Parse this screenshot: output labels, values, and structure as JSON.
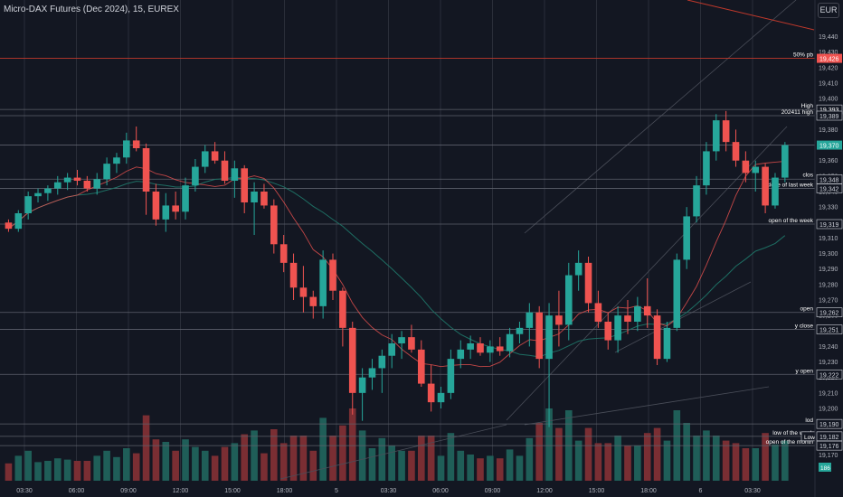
{
  "header": {
    "title": "Micro-DAX Futures (Dec 2024), 15, EUREX",
    "currency": "EUR"
  },
  "chart_data": {
    "type": "candlestick",
    "ylim": [
      19165,
      19452
    ],
    "y_ticks": [
      19440,
      19430,
      19420,
      19410,
      19400,
      19390,
      19380,
      19370,
      19360,
      19350,
      19340,
      19330,
      19320,
      19310,
      19300,
      19290,
      19280,
      19270,
      19260,
      19250,
      19240,
      19230,
      19220,
      19210,
      19200,
      19190,
      19180,
      19170
    ],
    "x_ticks": [
      "03:30",
      "06:00",
      "09:00",
      "12:00",
      "15:00",
      "18:00",
      "5",
      "03:30",
      "06:00",
      "09:00",
      "12:00",
      "15:00",
      "18:00",
      "6",
      "03:30"
    ],
    "colors": {
      "up": "#26a69a",
      "down": "#ef5350",
      "bg": "#131722",
      "grid": "#2a2e39",
      "level": "#5d606b",
      "ma1": "#ef5350",
      "ma2": "#1e6e63"
    },
    "candles": [
      [
        19320,
        19322,
        19314,
        19316
      ],
      [
        19316,
        19328,
        19314,
        19326
      ],
      [
        19326,
        19340,
        19322,
        19337
      ],
      [
        19337,
        19342,
        19333,
        19339
      ],
      [
        19339,
        19344,
        19334,
        19342
      ],
      [
        19342,
        19350,
        19338,
        19346
      ],
      [
        19346,
        19352,
        19341,
        19349
      ],
      [
        19349,
        19354,
        19344,
        19347
      ],
      [
        19347,
        19350,
        19340,
        19342
      ],
      [
        19342,
        19352,
        19338,
        19348
      ],
      [
        19348,
        19362,
        19344,
        19358
      ],
      [
        19358,
        19365,
        19352,
        19362
      ],
      [
        19362,
        19378,
        19358,
        19373
      ],
      [
        19373,
        19382,
        19366,
        19368
      ],
      [
        19368,
        19371,
        19325,
        19340
      ],
      [
        19340,
        19345,
        19318,
        19322
      ],
      [
        19322,
        19339,
        19314,
        19331
      ],
      [
        19331,
        19340,
        19322,
        19327
      ],
      [
        19327,
        19349,
        19322,
        19344
      ],
      [
        19344,
        19361,
        19340,
        19356
      ],
      [
        19356,
        19370,
        19352,
        19366
      ],
      [
        19366,
        19372,
        19358,
        19360
      ],
      [
        19360,
        19366,
        19345,
        19347
      ],
      [
        19347,
        19360,
        19336,
        19355
      ],
      [
        19355,
        19357,
        19326,
        19333
      ],
      [
        19333,
        19346,
        19312,
        19340
      ],
      [
        19340,
        19345,
        19329,
        19331
      ],
      [
        19331,
        19335,
        19300,
        19306
      ],
      [
        19306,
        19312,
        19288,
        19294
      ],
      [
        19294,
        19300,
        19270,
        19278
      ],
      [
        19278,
        19292,
        19262,
        19272
      ],
      [
        19272,
        19276,
        19258,
        19266
      ],
      [
        19266,
        19302,
        19258,
        19296
      ],
      [
        19296,
        19300,
        19270,
        19276
      ],
      [
        19276,
        19278,
        19240,
        19252
      ],
      [
        19252,
        19256,
        19196,
        19210
      ],
      [
        19210,
        19226,
        19192,
        19220
      ],
      [
        19220,
        19232,
        19212,
        19226
      ],
      [
        19226,
        19238,
        19210,
        19234
      ],
      [
        19234,
        19248,
        19226,
        19242
      ],
      [
        19242,
        19250,
        19232,
        19246
      ],
      [
        19246,
        19254,
        19236,
        19238
      ],
      [
        19238,
        19244,
        19214,
        19216
      ],
      [
        19216,
        19228,
        19198,
        19204
      ],
      [
        19204,
        19214,
        19200,
        19210
      ],
      [
        19210,
        19238,
        19206,
        19232
      ],
      [
        19232,
        19244,
        19226,
        19238
      ],
      [
        19238,
        19247,
        19232,
        19242
      ],
      [
        19242,
        19246,
        19234,
        19236
      ],
      [
        19236,
        19244,
        19230,
        19240
      ],
      [
        19240,
        19246,
        19234,
        19237
      ],
      [
        19237,
        19252,
        19233,
        19248
      ],
      [
        19248,
        19256,
        19242,
        19252
      ],
      [
        19252,
        19268,
        19240,
        19262
      ],
      [
        19262,
        19266,
        19226,
        19232
      ],
      [
        19232,
        19268,
        19188,
        19260
      ],
      [
        19260,
        19276,
        19240,
        19254
      ],
      [
        19254,
        19294,
        19244,
        19286
      ],
      [
        19286,
        19302,
        19276,
        19294
      ],
      [
        19294,
        19298,
        19262,
        19268
      ],
      [
        19268,
        19276,
        19252,
        19256
      ],
      [
        19256,
        19262,
        19238,
        19244
      ],
      [
        19244,
        19266,
        19236,
        19260
      ],
      [
        19260,
        19270,
        19248,
        19256
      ],
      [
        19256,
        19272,
        19250,
        19266
      ],
      [
        19266,
        19284,
        19252,
        19260
      ],
      [
        19260,
        19264,
        19228,
        19232
      ],
      [
        19232,
        19256,
        19230,
        19252
      ],
      [
        19252,
        19300,
        19250,
        19296
      ],
      [
        19296,
        19330,
        19290,
        19324
      ],
      [
        19324,
        19350,
        19320,
        19344
      ],
      [
        19344,
        19372,
        19338,
        19366
      ],
      [
        19366,
        19390,
        19360,
        19386
      ],
      [
        19386,
        19392,
        19366,
        19372
      ],
      [
        19372,
        19380,
        19356,
        19360
      ],
      [
        19360,
        19366,
        19346,
        19352
      ],
      [
        19352,
        19360,
        19340,
        19356
      ],
      [
        19356,
        19358,
        19326,
        19331
      ],
      [
        19331,
        19352,
        19329,
        19349
      ],
      [
        19349,
        19372,
        19346,
        19370
      ]
    ],
    "levels": [
      {
        "y": 19426,
        "label": "19,426",
        "name": "50% pb",
        "tag_bg": "#ef5350",
        "tag_fg": "#ffffff"
      },
      {
        "y": 19393,
        "label": "19,393",
        "name": "High",
        "tag_bg": "#131722",
        "tag_fg": "#ffffff"
      },
      {
        "y": 19389,
        "label": "19,389",
        "name": "202411 high",
        "tag_bg": "#131722",
        "tag_fg": "#d1d4dc"
      },
      {
        "y": 19370,
        "label": "19,370",
        "name": "",
        "tag_bg": "#26a69a",
        "tag_fg": "#ffffff"
      },
      {
        "y": 19348,
        "label": "19,348",
        "name": "clos",
        "tag_bg": "#131722",
        "tag_fg": "#d1d4dc"
      },
      {
        "y": 19342,
        "label": "19,342",
        "name": "close of last week",
        "tag_bg": "#131722",
        "tag_fg": "#d1d4dc"
      },
      {
        "y": 19319,
        "label": "19,319",
        "name": "open of the week",
        "tag_bg": "#131722",
        "tag_fg": "#d1d4dc"
      },
      {
        "y": 19262,
        "label": "19,262",
        "name": "open",
        "tag_bg": "#131722",
        "tag_fg": "#d1d4dc"
      },
      {
        "y": 19251,
        "label": "19,251",
        "name": "y close",
        "tag_bg": "#131722",
        "tag_fg": "#d1d4dc"
      },
      {
        "y": 19222,
        "label": "19,222",
        "name": "y open",
        "tag_bg": "#131722",
        "tag_fg": "#d1d4dc"
      },
      {
        "y": 19190,
        "label": "19,190",
        "name": "lod",
        "tag_bg": "#131722",
        "tag_fg": "#d1d4dc"
      },
      {
        "y": 19182,
        "label": "19,182",
        "name": "low of the week",
        "tag_bg": "#131722",
        "tag_fg": "#d1d4dc"
      },
      {
        "y": 19176,
        "label": "19,176",
        "name": "open of the month",
        "tag_bg": "#131722",
        "tag_fg": "#d1d4dc"
      }
    ],
    "low_label": "Low",
    "volume_label": "186"
  }
}
